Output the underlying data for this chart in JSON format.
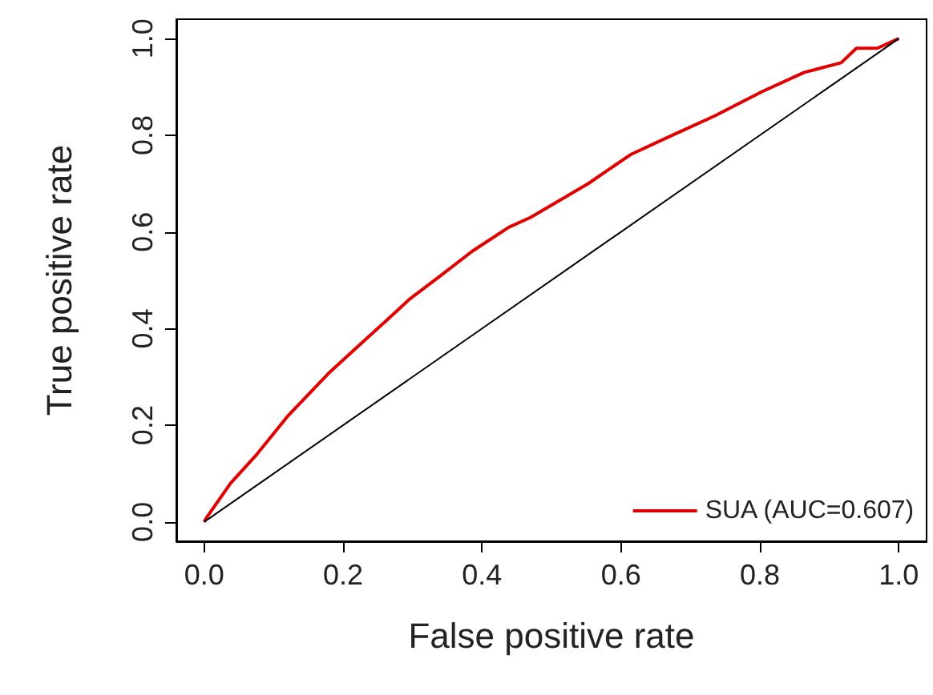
{
  "chart_data": {
    "type": "line",
    "xlabel": "False positive rate",
    "ylabel": "True positive rate",
    "xlim": [
      -0.04,
      1.04
    ],
    "ylim": [
      -0.04,
      1.04
    ],
    "xticks": [
      {
        "value": 0,
        "label": "0.0"
      },
      {
        "value": 0.2,
        "label": "0.2"
      },
      {
        "value": 0.4,
        "label": "0.4"
      },
      {
        "value": 0.6,
        "label": "0.6"
      },
      {
        "value": 0.8,
        "label": "0.8"
      },
      {
        "value": 1,
        "label": "1.0"
      }
    ],
    "yticks": [
      {
        "value": 0,
        "label": "0.0"
      },
      {
        "value": 0.2,
        "label": "0.2"
      },
      {
        "value": 0.4,
        "label": "0.4"
      },
      {
        "value": 0.6,
        "label": "0.6"
      },
      {
        "value": 0.8,
        "label": "0.8"
      },
      {
        "value": 1,
        "label": "1.0"
      }
    ],
    "grid": false,
    "legend": "bottom right",
    "marker": "none",
    "line_style": "solid",
    "series": [
      {
        "name": "SUA (AUC=0.607)",
        "color": "#e00000",
        "x": [
          0,
          0.004,
          0.038,
          0.076,
          0.121,
          0.181,
          0.219,
          0.265,
          0.295,
          0.341,
          0.386,
          0.439,
          0.47,
          0.553,
          0.614,
          0.674,
          0.735,
          0.803,
          0.864,
          0.917,
          0.939,
          0.969,
          1.0
        ],
        "values": [
          0,
          0.01,
          0.08,
          0.14,
          0.22,
          0.31,
          0.36,
          0.42,
          0.46,
          0.51,
          0.56,
          0.61,
          0.63,
          0.7,
          0.76,
          0.8,
          0.84,
          0.89,
          0.93,
          0.95,
          0.98,
          0.98,
          1.0
        ]
      },
      {
        "color": "#000000",
        "x": [
          0,
          1
        ],
        "values": [
          0,
          1
        ]
      }
    ]
  }
}
